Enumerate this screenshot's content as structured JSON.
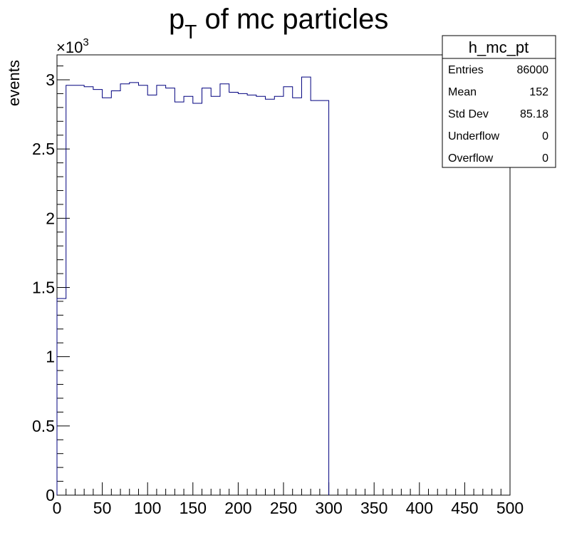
{
  "chart_data": {
    "type": "bar",
    "histogram": true,
    "title": {
      "base": "p",
      "subscript": "T",
      "rest": " of mc particles"
    },
    "xlabel": "",
    "ylabel": "events",
    "y_multiplier": {
      "base": "×10",
      "exponent": "3"
    },
    "xlim": [
      0,
      500
    ],
    "ylim": [
      0,
      3.18
    ],
    "x_ticks": [
      0,
      50,
      100,
      150,
      200,
      250,
      300,
      350,
      400,
      450,
      500
    ],
    "y_ticks": [
      0,
      0.5,
      1,
      1.5,
      2,
      2.5,
      3
    ],
    "x_tick_labels": [
      "0",
      "50",
      "100",
      "150",
      "200",
      "250",
      "300",
      "350",
      "400",
      "450",
      "500"
    ],
    "y_tick_labels": [
      "0",
      "0.5",
      "1",
      "1.5",
      "2",
      "2.5",
      "3"
    ],
    "bin_width": 10,
    "bin_low_edges": [
      0,
      10,
      20,
      30,
      40,
      50,
      60,
      70,
      80,
      90,
      100,
      110,
      120,
      130,
      140,
      150,
      160,
      170,
      180,
      190,
      200,
      210,
      220,
      230,
      240,
      250,
      260,
      270,
      280,
      290
    ],
    "values": [
      1.42,
      2.96,
      2.96,
      2.95,
      2.93,
      2.87,
      2.92,
      2.97,
      2.98,
      2.96,
      2.89,
      2.96,
      2.94,
      2.84,
      2.88,
      2.83,
      2.94,
      2.88,
      2.97,
      2.91,
      2.9,
      2.89,
      2.88,
      2.86,
      2.88,
      2.95,
      2.87,
      3.02,
      2.85,
      2.85
    ],
    "line_color": "#00007f",
    "stats_box": {
      "title": "h_mc_pt",
      "rows": [
        {
          "label": "Entries",
          "value": "86000"
        },
        {
          "label": "Mean",
          "value": "152"
        },
        {
          "label": "Std Dev",
          "value": "85.18"
        },
        {
          "label": "Underflow",
          "value": "0"
        },
        {
          "label": "Overflow",
          "value": "0"
        }
      ]
    }
  }
}
